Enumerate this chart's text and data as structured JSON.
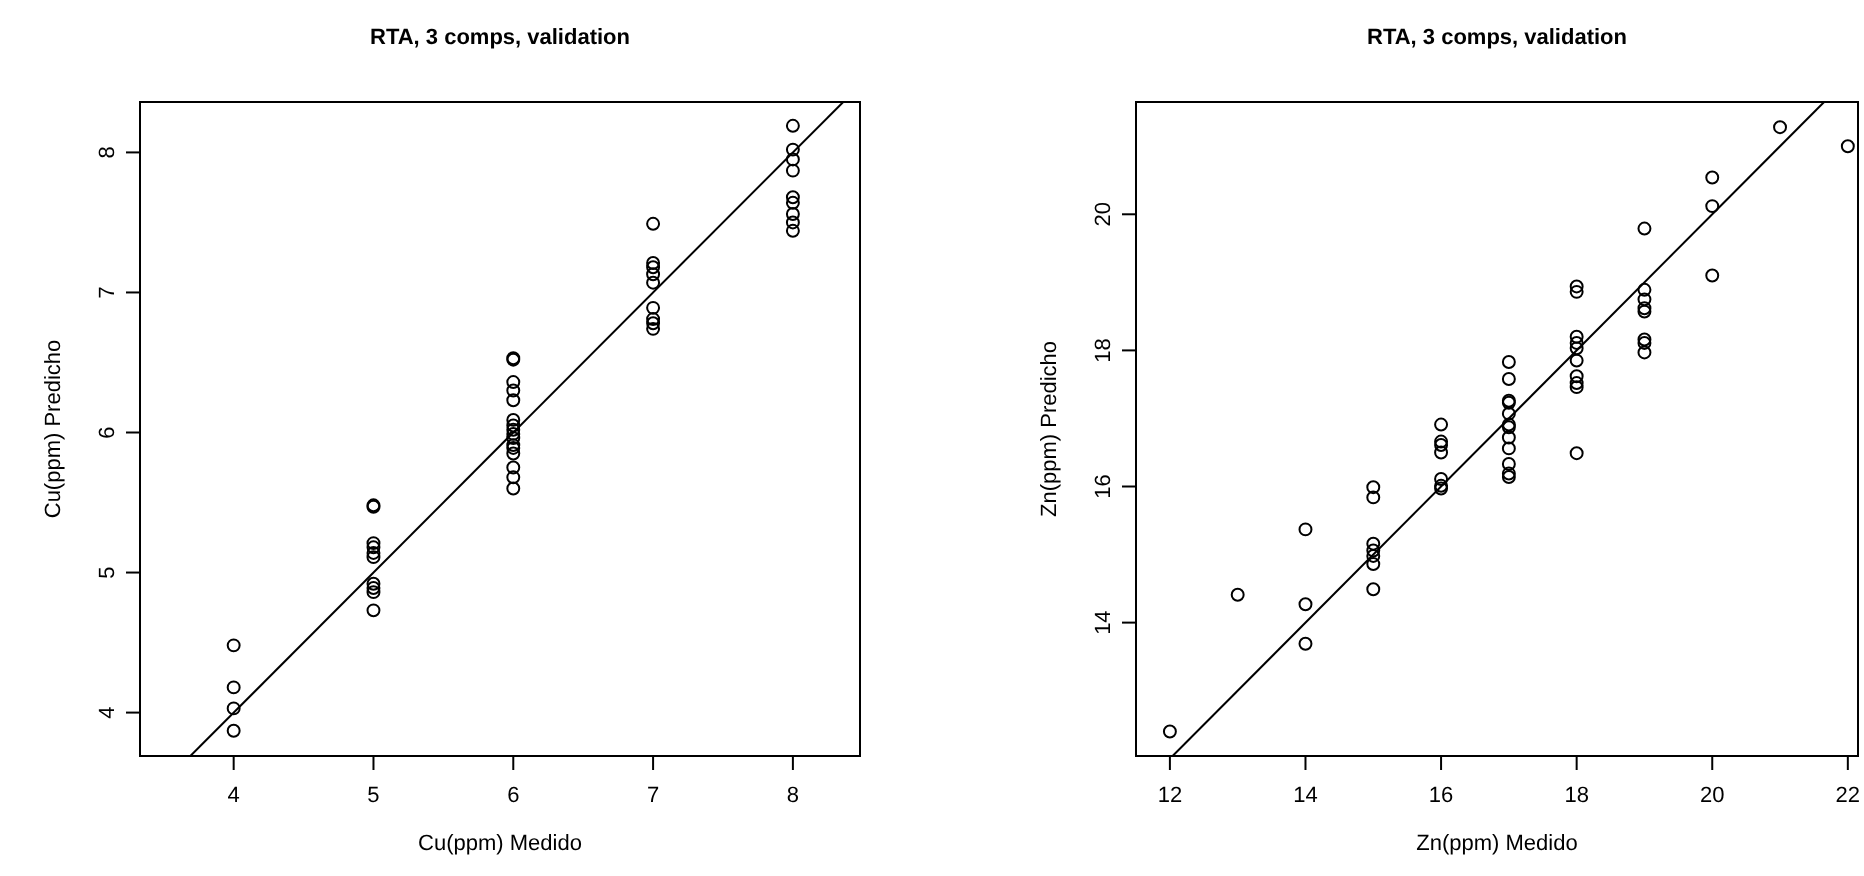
{
  "chart_data": [
    {
      "type": "scatter",
      "title": "RTA, 3 comps, validation",
      "xlabel": "Cu(ppm) Medido",
      "ylabel": "Cu(ppm) Predicho",
      "xlim": [
        3.33,
        8.48
      ],
      "ylim": [
        3.69,
        8.36
      ],
      "xticks": [
        4,
        5,
        6,
        7,
        8
      ],
      "yticks": [
        4,
        5,
        6,
        7,
        8
      ],
      "grid": false,
      "series": [
        {
          "marker": "circle",
          "color": "#000000",
          "x": [
            4,
            4,
            4,
            4,
            5,
            5,
            5,
            5,
            5,
            5,
            5,
            5,
            5,
            5,
            6,
            6,
            6,
            6,
            6,
            6,
            6,
            6,
            6,
            6,
            6,
            6,
            6,
            6,
            6,
            6,
            7,
            7,
            7,
            7,
            7,
            7,
            7,
            7,
            7,
            8,
            8,
            8,
            8,
            8,
            8,
            8,
            8,
            8
          ],
          "values": [
            4.48,
            4.18,
            4.03,
            3.87,
            5.48,
            5.47,
            5.21,
            5.18,
            5.14,
            5.11,
            4.92,
            4.89,
            4.86,
            4.73,
            6.53,
            6.52,
            6.36,
            6.3,
            6.23,
            6.09,
            6.05,
            6.02,
            5.99,
            5.96,
            5.91,
            5.89,
            5.85,
            5.75,
            5.68,
            5.6,
            7.49,
            7.21,
            7.18,
            7.13,
            7.07,
            6.89,
            6.81,
            6.78,
            6.74,
            8.19,
            8.02,
            7.95,
            7.87,
            7.68,
            7.64,
            7.56,
            7.5,
            7.44
          ]
        },
        {
          "type": "line",
          "marker": "none",
          "color": "#000000",
          "x": [
            3.69,
            8.36
          ],
          "values": [
            3.69,
            8.36
          ]
        }
      ]
    },
    {
      "type": "scatter",
      "title": "RTA, 3 comps, validation",
      "xlabel": "Zn(ppm) Medido",
      "ylabel": "Zn(ppm) Predicho",
      "xlim": [
        11.5,
        22.15
      ],
      "ylim": [
        12.04,
        21.65
      ],
      "xticks": [
        12,
        14,
        16,
        18,
        20,
        22
      ],
      "yticks": [
        14,
        16,
        18,
        20
      ],
      "grid": false,
      "series": [
        {
          "marker": "circle",
          "color": "#000000",
          "x": [
            12,
            13,
            14,
            14,
            14,
            15,
            15,
            15,
            15,
            15,
            15,
            15,
            16,
            16,
            16,
            16,
            16,
            16,
            16,
            17,
            17,
            17,
            17,
            17,
            17,
            17,
            17,
            17,
            17,
            17,
            17,
            18,
            18,
            18,
            18,
            18,
            18,
            18,
            18,
            18,
            18,
            19,
            19,
            19,
            19,
            19,
            19,
            19,
            19,
            20,
            20,
            20,
            21,
            22
          ],
          "values": [
            12.4,
            14.41,
            15.37,
            14.27,
            13.69,
            15.99,
            15.84,
            15.16,
            15.06,
            14.98,
            14.86,
            14.49,
            16.91,
            16.66,
            16.61,
            16.5,
            16.11,
            16.01,
            15.97,
            17.83,
            17.58,
            17.26,
            17.23,
            17.07,
            16.91,
            16.87,
            16.72,
            16.56,
            16.33,
            16.19,
            16.14,
            18.94,
            18.86,
            18.2,
            18.11,
            18.03,
            17.85,
            17.62,
            17.52,
            17.46,
            16.49,
            19.79,
            18.89,
            18.75,
            18.62,
            18.57,
            18.16,
            18.11,
            17.97,
            20.54,
            20.12,
            19.1,
            21.28,
            21.0
          ]
        },
        {
          "type": "line",
          "marker": "none",
          "color": "#000000",
          "x": [
            12.04,
            21.65
          ],
          "values": [
            12.04,
            21.65
          ]
        }
      ]
    }
  ]
}
